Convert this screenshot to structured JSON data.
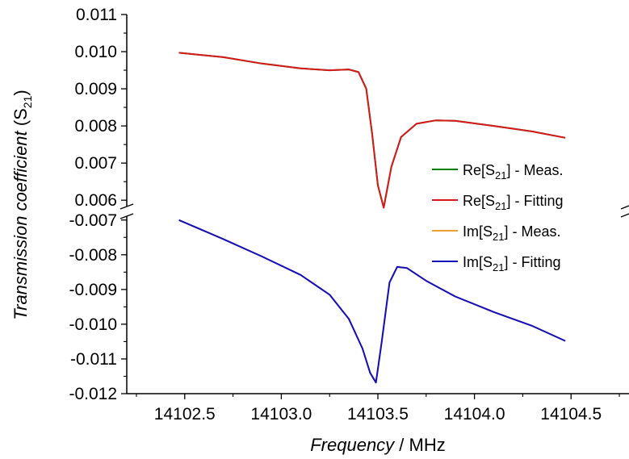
{
  "chart_data": {
    "type": "line",
    "xlabel": {
      "italic": "Frequency",
      "sep": " / ",
      "unit": "MHz"
    },
    "ylabel": {
      "italic": "Transmission coefficient",
      "pre": " (S",
      "sub": "21",
      "post": ")"
    },
    "xlim": [
      14102.2,
      14104.8
    ],
    "ylim_upper": [
      0.0057,
      0.011
    ],
    "ylim_lower": [
      -0.012,
      -0.00675
    ],
    "x_ticks": [
      14102.5,
      14103.0,
      14103.5,
      14104.0,
      14104.5
    ],
    "x_tick_labels": [
      "14102.5",
      "14103.0",
      "14103.5",
      "14104.0",
      "14104.5"
    ],
    "y_ticks_upper": [
      0.006,
      0.007,
      0.008,
      0.009,
      0.01,
      0.011
    ],
    "y_tick_labels_upper": [
      "0.006",
      "0.007",
      "0.008",
      "0.009",
      "0.010",
      "0.011"
    ],
    "y_ticks_lower": [
      -0.007,
      -0.008,
      -0.009,
      -0.01,
      -0.011,
      -0.012
    ],
    "y_tick_labels_lower": [
      "-0.007",
      "-0.008",
      "-0.009",
      "-0.010",
      "-0.011",
      "-0.012"
    ],
    "axis_break": true,
    "legend_placement": "right",
    "series": [
      {
        "name": {
          "pre": "Re[S",
          "sub": "21",
          "post": "] - Meas."
        },
        "color": "#008000",
        "panel": "upper",
        "x": [
          14102.47,
          14102.7,
          14102.9,
          14103.1,
          14103.25,
          14103.35,
          14103.4,
          14103.44,
          14103.47,
          14103.5,
          14103.53,
          14103.57,
          14103.62,
          14103.7,
          14103.8,
          14103.9,
          14104.1,
          14104.3,
          14104.47
        ],
        "y": [
          0.00997,
          0.00985,
          0.00968,
          0.00955,
          0.0095,
          0.00952,
          0.00945,
          0.009,
          0.0078,
          0.0064,
          0.0058,
          0.0069,
          0.0077,
          0.00806,
          0.00815,
          0.00814,
          0.008,
          0.00785,
          0.00768
        ]
      },
      {
        "name": {
          "pre": "Re[S",
          "sub": "21",
          "post": "] - Fitting"
        },
        "color": "#d7191c",
        "panel": "upper",
        "x": [
          14102.47,
          14102.7,
          14102.9,
          14103.1,
          14103.25,
          14103.35,
          14103.4,
          14103.44,
          14103.47,
          14103.5,
          14103.53,
          14103.57,
          14103.62,
          14103.7,
          14103.8,
          14103.9,
          14104.1,
          14104.3,
          14104.47
        ],
        "y": [
          0.00997,
          0.00985,
          0.00968,
          0.00955,
          0.0095,
          0.00952,
          0.00945,
          0.009,
          0.0078,
          0.0064,
          0.0058,
          0.0069,
          0.0077,
          0.00806,
          0.00815,
          0.00814,
          0.008,
          0.00785,
          0.00768
        ]
      },
      {
        "name": {
          "pre": "Im[S",
          "sub": "21",
          "post": "] - Meas."
        },
        "color": "#f0a030",
        "panel": "lower",
        "x": [
          14102.47,
          14102.7,
          14102.9,
          14103.1,
          14103.25,
          14103.35,
          14103.42,
          14103.46,
          14103.49,
          14103.52,
          14103.56,
          14103.6,
          14103.65,
          14103.75,
          14103.9,
          14104.1,
          14104.3,
          14104.47
        ],
        "y": [
          -0.007,
          -0.00755,
          -0.00805,
          -0.00858,
          -0.00915,
          -0.00985,
          -0.0107,
          -0.0114,
          -0.01168,
          -0.0105,
          -0.0088,
          -0.00835,
          -0.00838,
          -0.00875,
          -0.0092,
          -0.00965,
          -0.01005,
          -0.01048
        ]
      },
      {
        "name": {
          "pre": "Im[S",
          "sub": "21",
          "post": "] - Fitting"
        },
        "color": "#1010c0",
        "panel": "lower",
        "x": [
          14102.47,
          14102.7,
          14102.9,
          14103.1,
          14103.25,
          14103.35,
          14103.42,
          14103.46,
          14103.49,
          14103.52,
          14103.56,
          14103.6,
          14103.65,
          14103.75,
          14103.9,
          14104.1,
          14104.3,
          14104.47
        ],
        "y": [
          -0.007,
          -0.00755,
          -0.00805,
          -0.00858,
          -0.00915,
          -0.00985,
          -0.0107,
          -0.0114,
          -0.01168,
          -0.0105,
          -0.0088,
          -0.00835,
          -0.00838,
          -0.00875,
          -0.0092,
          -0.00965,
          -0.01005,
          -0.01048
        ]
      }
    ]
  }
}
